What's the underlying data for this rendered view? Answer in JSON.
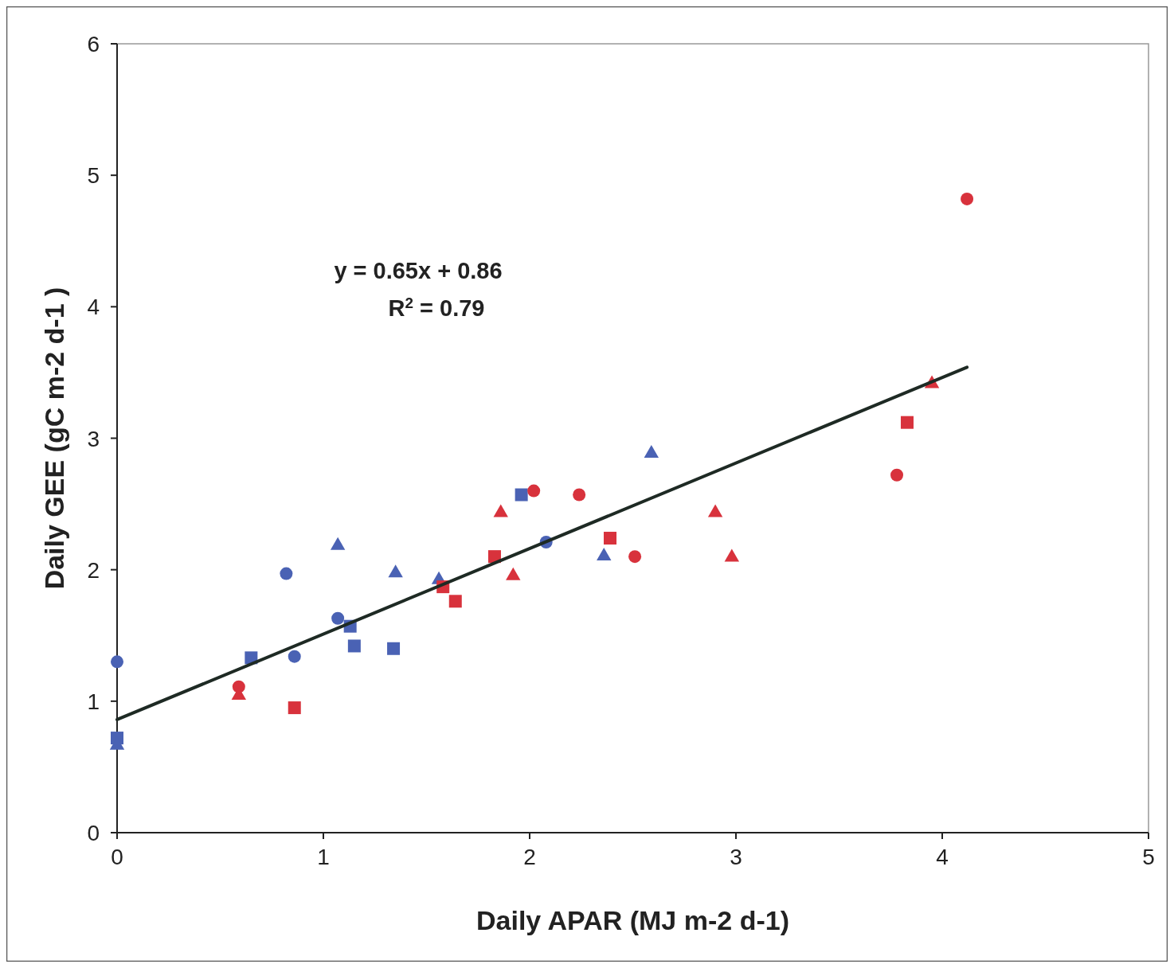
{
  "chart_data": {
    "type": "scatter",
    "xlabel": "Daily APAR (MJ m-2 d-1)",
    "ylabel": "Daily GEE (gC m-2 d-1 )",
    "xlim": [
      0,
      5
    ],
    "ylim": [
      0,
      6
    ],
    "xticks": [
      0,
      1,
      2,
      3,
      4,
      5
    ],
    "yticks": [
      0,
      1,
      2,
      3,
      4,
      5,
      6
    ],
    "grid": false,
    "annotations": [
      "y = 0.65x + 0.86",
      "R$^{2}$ = 0.79"
    ],
    "series": [
      {
        "color": "#4a62b4",
        "marker": "circle",
        "x": [
          0,
          0.82,
          1.07,
          0.86,
          2.08
        ],
        "values": [
          1.3,
          1.97,
          1.63,
          1.34,
          2.21
        ]
      },
      {
        "color": "#4a62b4",
        "marker": "square",
        "x": [
          0,
          0.65,
          1.13,
          1.15,
          1.34,
          1.96
        ],
        "values": [
          0.72,
          1.33,
          1.57,
          1.42,
          1.4,
          2.57
        ]
      },
      {
        "color": "#4a62b4",
        "marker": "triangle",
        "x": [
          0,
          1.07,
          1.35,
          1.56,
          2.36,
          2.59
        ],
        "values": [
          0.67,
          2.19,
          1.98,
          1.93,
          2.11,
          2.89
        ]
      },
      {
        "color": "#d8323c",
        "marker": "circle",
        "x": [
          0.59,
          2.02,
          2.24,
          2.51,
          3.78,
          4.12
        ],
        "values": [
          1.11,
          2.6,
          2.57,
          2.1,
          2.72,
          4.82
        ]
      },
      {
        "color": "#d8323c",
        "marker": "square",
        "x": [
          0.86,
          1.58,
          1.64,
          1.83,
          2.39,
          3.83
        ],
        "values": [
          0.95,
          1.87,
          1.76,
          2.1,
          2.24,
          3.12
        ]
      },
      {
        "color": "#d8323c",
        "marker": "triangle",
        "x": [
          0.59,
          1.86,
          1.92,
          2.9,
          2.98,
          3.95
        ],
        "values": [
          1.05,
          2.44,
          1.96,
          2.44,
          2.1,
          3.42
        ]
      },
      {
        "type": "line",
        "color": "#1e2a24",
        "marker": "none",
        "x": [
          0,
          4.12
        ],
        "values": [
          0.86,
          3.54
        ]
      }
    ]
  }
}
